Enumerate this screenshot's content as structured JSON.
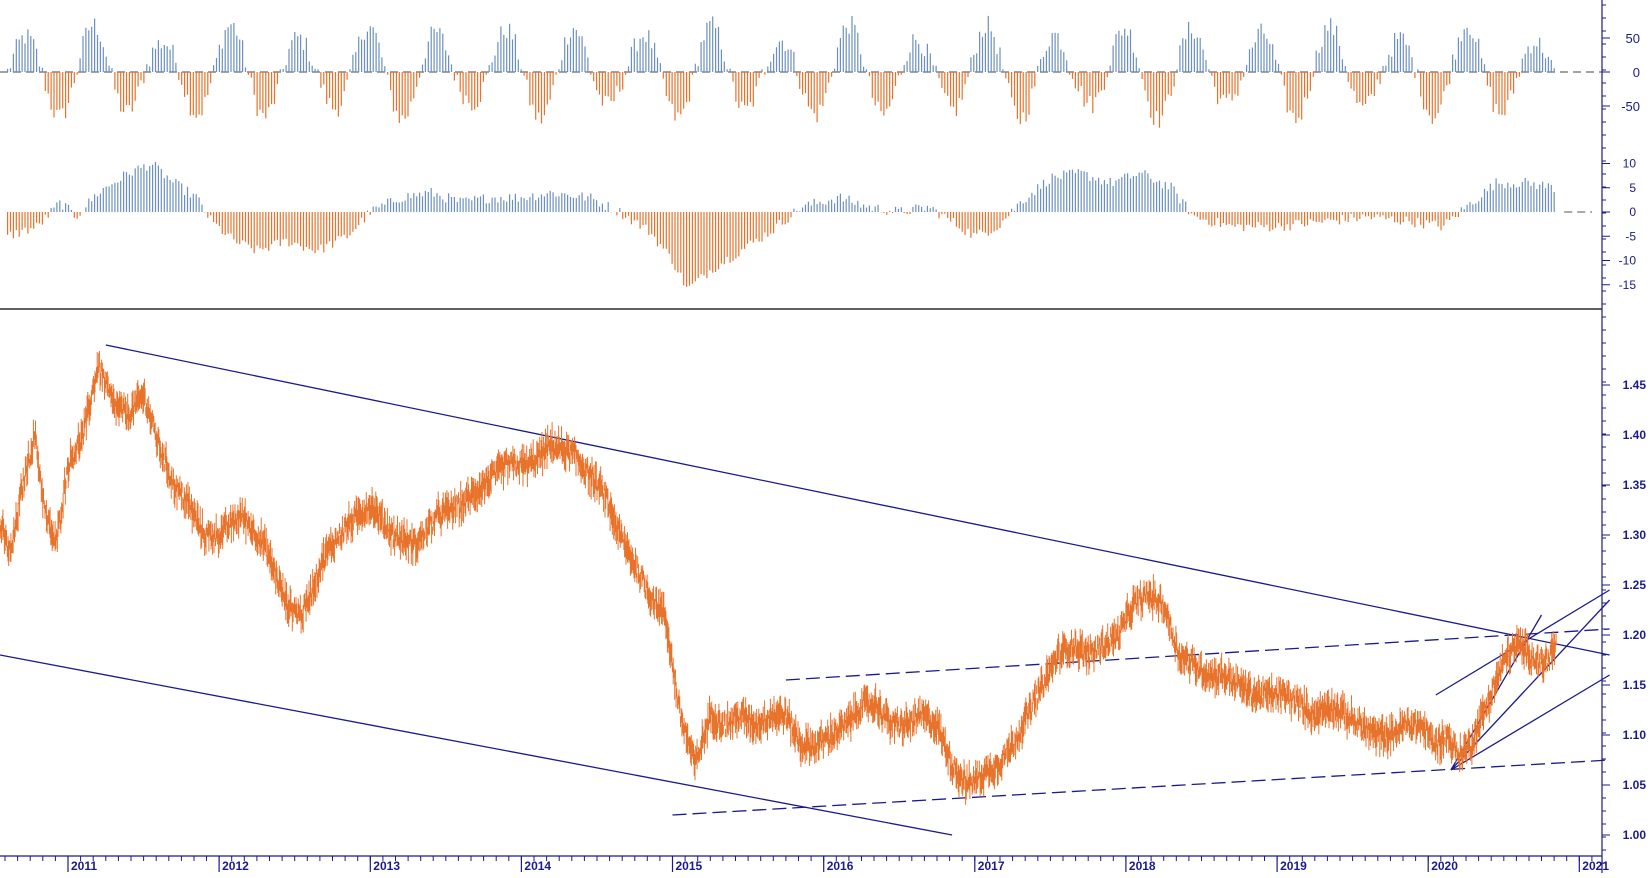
{
  "chart_data": [
    {
      "id": "oscillator-top",
      "type": "bar",
      "title": "",
      "ylim": [
        -100,
        100
      ],
      "yticks": [
        50,
        0,
        -50
      ],
      "ytick_labels": [
        "50",
        "0",
        "-50"
      ],
      "zero_line": "dashed",
      "colors": {
        "positive": "#6b8fc2",
        "negative": "#e8722a"
      },
      "note_values": "weekly cyclical oscillator, amplitude roughly +80 to -85",
      "x_range": [
        2010.6,
        2020.85
      ],
      "values": []
    },
    {
      "id": "oscillator-middle",
      "type": "bar",
      "title": "",
      "ylim": [
        -18,
        12
      ],
      "yticks": [
        10,
        5,
        0,
        -5,
        -10,
        -15
      ],
      "ytick_labels": [
        "10",
        "5",
        "0",
        "-5",
        "-10",
        "-15"
      ],
      "zero_line": "dashed",
      "colors": {
        "positive": "#6b8fc2",
        "negative": "#e8722a"
      },
      "x_range": [
        2010.6,
        2020.85
      ],
      "segments": [
        {
          "x": 2010.6,
          "y": -5
        },
        {
          "x": 2010.8,
          "y": -3
        },
        {
          "x": 2010.95,
          "y": 2
        },
        {
          "x": 2011.05,
          "y": -1
        },
        {
          "x": 2011.2,
          "y": 4
        },
        {
          "x": 2011.4,
          "y": 8
        },
        {
          "x": 2011.55,
          "y": 10
        },
        {
          "x": 2011.7,
          "y": 6
        },
        {
          "x": 2011.85,
          "y": 3
        },
        {
          "x": 2011.95,
          "y": -2
        },
        {
          "x": 2012.1,
          "y": -6
        },
        {
          "x": 2012.25,
          "y": -8
        },
        {
          "x": 2012.45,
          "y": -6
        },
        {
          "x": 2012.65,
          "y": -8
        },
        {
          "x": 2012.85,
          "y": -5
        },
        {
          "x": 2013.0,
          "y": 0
        },
        {
          "x": 2013.2,
          "y": 3
        },
        {
          "x": 2013.4,
          "y": 4
        },
        {
          "x": 2013.6,
          "y": 2
        },
        {
          "x": 2013.8,
          "y": 3
        },
        {
          "x": 2014.0,
          "y": 3
        },
        {
          "x": 2014.2,
          "y": 4
        },
        {
          "x": 2014.45,
          "y": 3
        },
        {
          "x": 2014.65,
          "y": 0
        },
        {
          "x": 2014.85,
          "y": -4
        },
        {
          "x": 2015.0,
          "y": -10
        },
        {
          "x": 2015.1,
          "y": -16
        },
        {
          "x": 2015.25,
          "y": -12
        },
        {
          "x": 2015.45,
          "y": -8
        },
        {
          "x": 2015.65,
          "y": -4
        },
        {
          "x": 2015.85,
          "y": 1
        },
        {
          "x": 2016.1,
          "y": 3
        },
        {
          "x": 2016.3,
          "y": 1
        },
        {
          "x": 2016.5,
          "y": 0
        },
        {
          "x": 2016.7,
          "y": 1
        },
        {
          "x": 2016.85,
          "y": -2
        },
        {
          "x": 2017.0,
          "y": -5
        },
        {
          "x": 2017.15,
          "y": -3
        },
        {
          "x": 2017.3,
          "y": 2
        },
        {
          "x": 2017.5,
          "y": 7
        },
        {
          "x": 2017.7,
          "y": 8
        },
        {
          "x": 2017.9,
          "y": 6
        },
        {
          "x": 2018.1,
          "y": 8
        },
        {
          "x": 2018.3,
          "y": 5
        },
        {
          "x": 2018.45,
          "y": -1
        },
        {
          "x": 2018.7,
          "y": -3
        },
        {
          "x": 2019.0,
          "y": -3
        },
        {
          "x": 2019.3,
          "y": -2
        },
        {
          "x": 2019.6,
          "y": -1
        },
        {
          "x": 2019.9,
          "y": -2
        },
        {
          "x": 2020.1,
          "y": -3
        },
        {
          "x": 2020.25,
          "y": 1
        },
        {
          "x": 2020.45,
          "y": 6
        },
        {
          "x": 2020.65,
          "y": 6
        },
        {
          "x": 2020.85,
          "y": 5
        }
      ]
    },
    {
      "id": "price",
      "type": "line",
      "title": "",
      "xlabel": "",
      "ylabel": "",
      "ylim": [
        0.99,
        1.52
      ],
      "yticks": [
        1.45,
        1.4,
        1.35,
        1.3,
        1.25,
        1.2,
        1.15,
        1.1,
        1.05,
        1.0
      ],
      "ytick_labels": [
        "1.45",
        "1.40",
        "1.35",
        "1.30",
        "1.25",
        "1.20",
        "1.15",
        "1.10",
        "1.05",
        "1.00"
      ],
      "xlim": [
        2010.55,
        2021.15
      ],
      "xticks": [
        2011,
        2012,
        2013,
        2014,
        2015,
        2016,
        2017,
        2018,
        2019,
        2020,
        2021
      ],
      "xtick_labels": [
        "2011",
        "2012",
        "2013",
        "2014",
        "2015",
        "2016",
        "2017",
        "2018",
        "2019",
        "2020",
        "2021"
      ],
      "series_color": "#e8722a",
      "trend_color": "#1a1a8c",
      "x": [
        2010.55,
        2010.62,
        2010.7,
        2010.78,
        2010.85,
        2010.92,
        2011.0,
        2011.1,
        2011.2,
        2011.3,
        2011.4,
        2011.5,
        2011.6,
        2011.7,
        2011.8,
        2011.9,
        2012.0,
        2012.15,
        2012.3,
        2012.45,
        2012.55,
        2012.7,
        2012.85,
        2013.0,
        2013.15,
        2013.3,
        2013.45,
        2013.6,
        2013.75,
        2013.9,
        2014.05,
        2014.2,
        2014.35,
        2014.45,
        2014.55,
        2014.65,
        2014.75,
        2014.85,
        2014.95,
        2015.05,
        2015.15,
        2015.25,
        2015.35,
        2015.45,
        2015.55,
        2015.65,
        2015.75,
        2015.85,
        2015.95,
        2016.05,
        2016.15,
        2016.25,
        2016.35,
        2016.45,
        2016.55,
        2016.65,
        2016.75,
        2016.85,
        2016.95,
        2017.05,
        2017.15,
        2017.25,
        2017.35,
        2017.45,
        2017.55,
        2017.65,
        2017.75,
        2017.85,
        2017.95,
        2018.05,
        2018.15,
        2018.25,
        2018.35,
        2018.45,
        2018.55,
        2018.65,
        2018.75,
        2018.85,
        2018.95,
        2019.05,
        2019.15,
        2019.25,
        2019.35,
        2019.45,
        2019.55,
        2019.65,
        2019.75,
        2019.85,
        2019.95,
        2020.05,
        2020.12,
        2020.2,
        2020.28,
        2020.36,
        2020.44,
        2020.52,
        2020.6,
        2020.68,
        2020.76,
        2020.85
      ],
      "y": [
        1.31,
        1.28,
        1.35,
        1.4,
        1.32,
        1.29,
        1.37,
        1.4,
        1.47,
        1.43,
        1.42,
        1.44,
        1.39,
        1.35,
        1.33,
        1.3,
        1.3,
        1.32,
        1.29,
        1.23,
        1.22,
        1.28,
        1.31,
        1.33,
        1.3,
        1.29,
        1.32,
        1.33,
        1.35,
        1.37,
        1.37,
        1.39,
        1.38,
        1.36,
        1.34,
        1.3,
        1.27,
        1.24,
        1.22,
        1.12,
        1.07,
        1.12,
        1.11,
        1.12,
        1.11,
        1.12,
        1.12,
        1.09,
        1.09,
        1.1,
        1.11,
        1.13,
        1.13,
        1.11,
        1.11,
        1.12,
        1.11,
        1.07,
        1.05,
        1.06,
        1.07,
        1.09,
        1.12,
        1.15,
        1.18,
        1.19,
        1.18,
        1.19,
        1.2,
        1.23,
        1.24,
        1.23,
        1.18,
        1.17,
        1.16,
        1.16,
        1.15,
        1.14,
        1.14,
        1.14,
        1.13,
        1.12,
        1.13,
        1.12,
        1.11,
        1.1,
        1.1,
        1.11,
        1.11,
        1.09,
        1.1,
        1.08,
        1.09,
        1.12,
        1.15,
        1.18,
        1.19,
        1.18,
        1.17,
        1.19
      ]
    }
  ]
}
